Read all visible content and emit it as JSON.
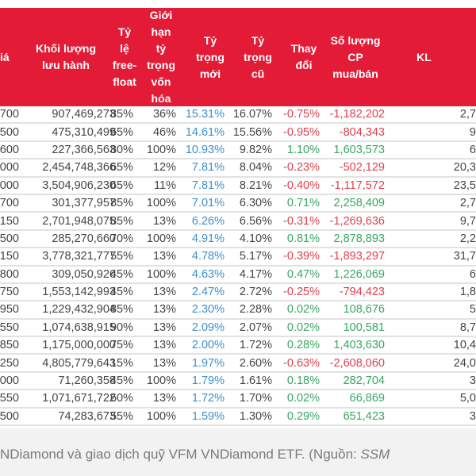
{
  "colors": {
    "header_bg": "#e31b37",
    "new_weight": "#3b8fd1",
    "negative": "#e2404c",
    "positive": "#3aa760"
  },
  "headers": [
    "iá",
    "Khối lượng\nlưu hành",
    "Tỷ\nlệ\nfree-\nfloat",
    "Giới\nhạn\ntỷ\ntrọng\nvốn\nhóa",
    "Tỷ\ntrọng\nmới",
    "Tỷ\ntrọng\ncũ",
    "Thay\nđổi",
    "Số lượng\nCP\nmua/bán",
    "KL"
  ],
  "rows": [
    [
      "700",
      "907,469,273",
      "85%",
      "36%",
      "15.31%",
      "16.07%",
      "-0.75%",
      "-1,182,202",
      "2,7"
    ],
    [
      "500",
      "475,310,499",
      "65%",
      "46%",
      "14.61%",
      "15.56%",
      "-0.95%",
      "-804,343",
      "9"
    ],
    [
      "600",
      "227,366,563",
      "80%",
      "100%",
      "10.93%",
      "9.82%",
      "1.10%",
      "1,603,573",
      "6"
    ],
    [
      "000",
      "2,454,748,366",
      "65%",
      "12%",
      "7.81%",
      "8.04%",
      "-0.23%",
      "-502,129",
      "20,3"
    ],
    [
      "000",
      "3,504,906,230",
      "65%",
      "11%",
      "7.81%",
      "8.21%",
      "-0.40%",
      "-1,117,572",
      "23,5"
    ],
    [
      "700",
      "301,377,957",
      "85%",
      "100%",
      "7.01%",
      "6.30%",
      "0.71%",
      "2,258,409",
      "2,7"
    ],
    [
      "150",
      "2,701,948,075",
      "85%",
      "13%",
      "6.26%",
      "6.56%",
      "-0.31%",
      "-1,269,636",
      "9,7"
    ],
    [
      "500",
      "285,270,660",
      "70%",
      "100%",
      "4.91%",
      "4.10%",
      "0.81%",
      "2,878,893",
      "2,2"
    ],
    [
      "150",
      "3,778,321,777",
      "55%",
      "13%",
      "4.78%",
      "5.17%",
      "-0.39%",
      "-1,893,297",
      "31,7"
    ],
    [
      "800",
      "309,050,926",
      "45%",
      "100%",
      "4.63%",
      "4.17%",
      "0.47%",
      "1,226,069",
      "6"
    ],
    [
      "750",
      "1,553,142,993",
      "45%",
      "13%",
      "2.47%",
      "2.72%",
      "-0.25%",
      "-794,423",
      "1,8"
    ],
    [
      "950",
      "1,229,432,904",
      "85%",
      "13%",
      "2.30%",
      "2.28%",
      "0.02%",
      "108,676",
      "5"
    ],
    [
      "550",
      "1,074,638,915",
      "90%",
      "13%",
      "2.09%",
      "2.07%",
      "0.02%",
      "100,581",
      "8,7"
    ],
    [
      "850",
      "1,175,000,000",
      "75%",
      "13%",
      "2.00%",
      "1.72%",
      "0.28%",
      "1,403,630",
      "10,4"
    ],
    [
      "250",
      "4,805,779,643",
      "15%",
      "13%",
      "1.97%",
      "2.60%",
      "-0.63%",
      "-2,608,060",
      "24,0"
    ],
    [
      "000",
      "71,260,358",
      "45%",
      "100%",
      "1.79%",
      "1.61%",
      "0.18%",
      "282,704",
      "3"
    ],
    [
      "550",
      "1,071,671,722",
      "60%",
      "13%",
      "1.72%",
      "1.70%",
      "0.02%",
      "66,869",
      "5,0"
    ],
    [
      "500",
      "74,283,673",
      "55%",
      "100%",
      "1.59%",
      "1.30%",
      "0.29%",
      "651,423",
      "3"
    ]
  ],
  "caption": {
    "text": "NDiamond và giao dịch quỹ VFM VNDiamond ETF. (Nguồn: ",
    "source": "SSM"
  }
}
